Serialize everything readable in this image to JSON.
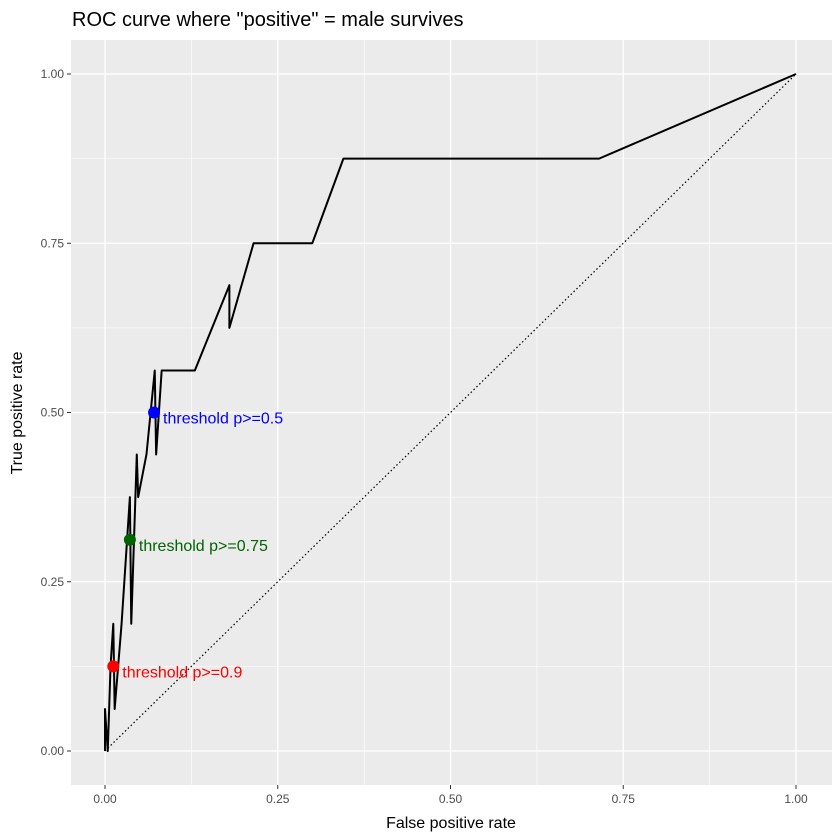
{
  "chart_data": {
    "type": "line",
    "title": "ROC curve where \"positive\" = male survives",
    "xlabel": "False positive rate",
    "ylabel": "True positive rate",
    "xlim": [
      0,
      1
    ],
    "ylim": [
      0,
      1
    ],
    "x_ticks": [
      "0.00",
      "0.25",
      "0.50",
      "0.75",
      "1.00"
    ],
    "y_ticks": [
      "0.00",
      "0.25",
      "0.50",
      "0.75",
      "1.00"
    ],
    "grid": true,
    "background_color": "#EBEBEB",
    "series": [
      {
        "style": "solid",
        "color": "#000000",
        "points": [
          [
            0.0,
            0.0
          ],
          [
            0.0,
            0.062
          ],
          [
            0.004,
            0.0
          ],
          [
            0.008,
            0.125
          ],
          [
            0.012,
            0.188
          ],
          [
            0.014,
            0.062
          ],
          [
            0.024,
            0.188
          ],
          [
            0.036,
            0.375
          ],
          [
            0.038,
            0.188
          ],
          [
            0.044,
            0.375
          ],
          [
            0.046,
            0.438
          ],
          [
            0.048,
            0.375
          ],
          [
            0.06,
            0.438
          ],
          [
            0.066,
            0.5
          ],
          [
            0.072,
            0.562
          ],
          [
            0.074,
            0.438
          ],
          [
            0.082,
            0.562
          ],
          [
            0.13,
            0.562
          ],
          [
            0.18,
            0.688
          ],
          [
            0.18,
            0.625
          ],
          [
            0.215,
            0.75
          ],
          [
            0.3,
            0.75
          ],
          [
            0.345,
            0.875
          ],
          [
            0.715,
            0.875
          ],
          [
            1.0,
            1.0
          ]
        ]
      },
      {
        "style": "dotted",
        "color": "#000000",
        "points": [
          [
            0,
            0
          ],
          [
            1,
            1
          ]
        ]
      }
    ],
    "markers": [
      {
        "label": "threshold p>=0.9",
        "x": 0.012,
        "y": 0.125,
        "color": "#FF0000"
      },
      {
        "label": "threshold p>=0.75",
        "x": 0.036,
        "y": 0.312,
        "color": "#006400"
      },
      {
        "label": "threshold p>=0.5",
        "x": 0.071,
        "y": 0.5,
        "color": "#0000FF"
      }
    ]
  }
}
